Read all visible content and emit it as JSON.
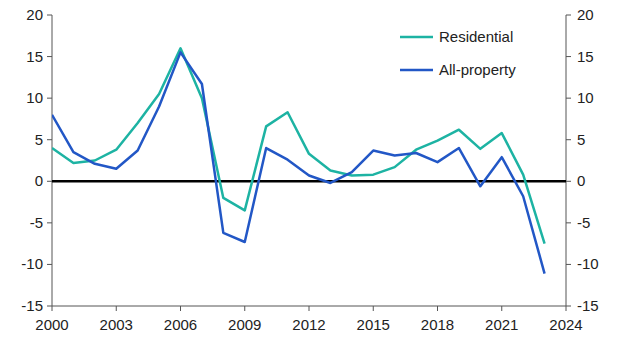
{
  "chart_data": {
    "type": "line",
    "x": [
      2000,
      2001,
      2002,
      2003,
      2004,
      2005,
      2006,
      2007,
      2008,
      2009,
      2010,
      2011,
      2012,
      2013,
      2014,
      2015,
      2016,
      2017,
      2018,
      2019,
      2020,
      2021,
      2022,
      2023
    ],
    "series": [
      {
        "name": "Residential",
        "color": "#1db3a3",
        "values": [
          4,
          2.2,
          2.5,
          3.8,
          7,
          10.5,
          16,
          10,
          -2,
          -3.5,
          6.6,
          8.3,
          3.3,
          1.3,
          0.7,
          0.8,
          1.7,
          3.8,
          4.9,
          6.2,
          3.9,
          5.8,
          0.8,
          -7.5
        ]
      },
      {
        "name": "All-property",
        "color": "#2257c6",
        "values": [
          8,
          3.5,
          2.1,
          1.5,
          3.7,
          9,
          15.5,
          11.7,
          -6.2,
          -7.3,
          4,
          2.6,
          0.7,
          -0.2,
          1.1,
          3.7,
          3.1,
          3.4,
          2.3,
          4,
          -0.6,
          2.9,
          -1.8,
          -11.1
        ]
      }
    ],
    "xlim": [
      2000,
      2024
    ],
    "xticks": [
      2000,
      2003,
      2006,
      2009,
      2012,
      2015,
      2018,
      2021,
      2024
    ],
    "ylim": [
      -15,
      20
    ],
    "yticks": [
      -15,
      -10,
      -5,
      0,
      5,
      10,
      15,
      20
    ],
    "y2lim": [
      -15,
      20
    ],
    "y2ticks": [
      -15,
      -10,
      -5,
      0,
      5,
      10,
      15,
      20
    ],
    "grid": false,
    "legend": "top-right"
  }
}
